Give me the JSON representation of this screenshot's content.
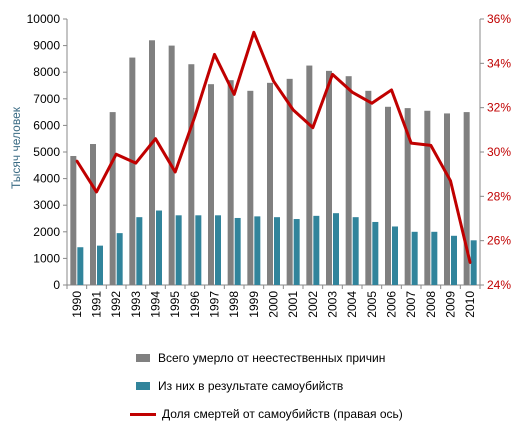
{
  "chart_data": {
    "type": "bar",
    "categories": [
      "1990",
      "1991",
      "1992",
      "1993",
      "1994",
      "1995",
      "1996",
      "1997",
      "1998",
      "1999",
      "2000",
      "2001",
      "2002",
      "2003",
      "2004",
      "2005",
      "2006",
      "2007",
      "2008",
      "2009",
      "2010"
    ],
    "ylabel": "Тысяч человек",
    "ylim": [
      0,
      10000
    ],
    "y_ticks": [
      "0",
      "1000",
      "2000",
      "3000",
      "4000",
      "5000",
      "6000",
      "7000",
      "8000",
      "9000",
      "10000"
    ],
    "y2lim": [
      24,
      36
    ],
    "y2_ticks": [
      "24%",
      "26%",
      "28%",
      "30%",
      "32%",
      "34%",
      "36%"
    ],
    "grid": false,
    "legend_position": "bottom",
    "series": [
      {
        "name": "Всего умерло от неестественных причин",
        "type": "bar",
        "color": "#808080",
        "values": [
          4850,
          5300,
          6500,
          8550,
          9200,
          9000,
          8300,
          7550,
          7700,
          7300,
          7600,
          7750,
          8250,
          8050,
          7850,
          7300,
          6700,
          6650,
          6550,
          6450,
          6500
        ]
      },
      {
        "name": "Из них в результате самоубийств",
        "type": "bar",
        "color": "#31849b",
        "values": [
          1420,
          1480,
          1950,
          2550,
          2800,
          2620,
          2620,
          2620,
          2520,
          2580,
          2550,
          2480,
          2600,
          2700,
          2550,
          2370,
          2200,
          2000,
          2000,
          1850,
          1680
        ]
      },
      {
        "name": "Доля смертей от самоубийств (правая  ось)",
        "type": "line",
        "axis": "right",
        "color": "#c00000",
        "values": [
          29.6,
          28.2,
          29.9,
          29.5,
          30.6,
          29.1,
          31.6,
          34.4,
          32.6,
          35.4,
          33.2,
          31.9,
          31.1,
          33.5,
          32.7,
          32.2,
          32.8,
          30.4,
          30.3,
          28.7,
          25.0
        ]
      }
    ]
  }
}
